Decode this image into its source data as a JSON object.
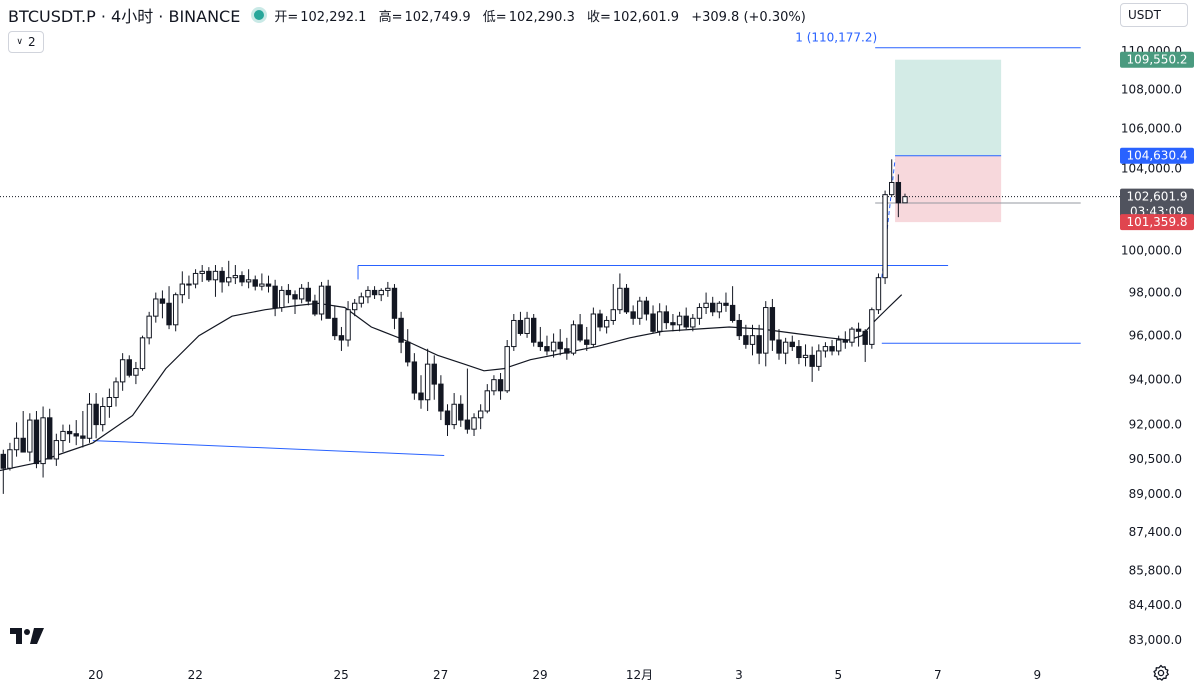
{
  "header": {
    "symbol": "BTCUSDT.P · 4小时 · BINANCE",
    "open_label": "开=",
    "open_value": "102,292.1",
    "high_label": "高=",
    "high_value": "102,749.9",
    "low_label": "低=",
    "low_value": "102,290.3",
    "close_label": "收=",
    "close_value": "102,601.9",
    "change": "+309.8 (+0.30%)"
  },
  "controls": {
    "collapse_count": "2",
    "currency": "USDT"
  },
  "colors": {
    "accent": "#2962ff",
    "target_label": "#4a9a7f",
    "stop_label": "#e0454f",
    "price_label": "#50535e",
    "profit_zone": "#d3ebe6",
    "loss_zone": "#f7d8dc"
  },
  "chart_data": {
    "type": "candlestick",
    "y_scale": "log",
    "ylim": [
      82200,
      110800
    ],
    "y_ticks": [
      {
        "value": 110000,
        "label": "110,000.0"
      },
      {
        "value": 108000,
        "label": "108,000.0"
      },
      {
        "value": 106000,
        "label": "106,000.0"
      },
      {
        "value": 104000,
        "label": "104,000.0"
      },
      {
        "value": 100000,
        "label": "100,000.0"
      },
      {
        "value": 98000,
        "label": "98,000.0"
      },
      {
        "value": 96000,
        "label": "96,000.0"
      },
      {
        "value": 94000,
        "label": "94,000.0"
      },
      {
        "value": 92000,
        "label": "92,000.0"
      },
      {
        "value": 90500,
        "label": "90,500.0"
      },
      {
        "value": 89000,
        "label": "89,000.0"
      },
      {
        "value": 87400,
        "label": "87,400.0"
      },
      {
        "value": 85800,
        "label": "85,800.0"
      },
      {
        "value": 84400,
        "label": "84,400.0"
      },
      {
        "value": 83000,
        "label": "83,000.0"
      }
    ],
    "x_ticks": [
      {
        "bar": 14,
        "label": "20"
      },
      {
        "bar": 29,
        "label": "22"
      },
      {
        "bar": 51,
        "label": "25"
      },
      {
        "bar": 66,
        "label": "27"
      },
      {
        "bar": 81,
        "label": "29"
      },
      {
        "bar": 96,
        "label": "12月"
      },
      {
        "bar": 111,
        "label": "3"
      },
      {
        "bar": 126,
        "label": "5"
      },
      {
        "bar": 141,
        "label": "7"
      },
      {
        "bar": 156,
        "label": "9"
      }
    ],
    "x_range_bars": [
      0,
      167.7
    ],
    "candles": [
      [
        90700,
        90900,
        89000,
        90100
      ],
      [
        90100,
        91200,
        90000,
        90900
      ],
      [
        90900,
        92100,
        90600,
        91400
      ],
      [
        91400,
        92600,
        90800,
        90800
      ],
      [
        90800,
        92500,
        90400,
        92200
      ],
      [
        92200,
        92600,
        90100,
        90300
      ],
      [
        90300,
        92800,
        89700,
        92300
      ],
      [
        92300,
        92700,
        90500,
        90500
      ],
      [
        90500,
        91600,
        90200,
        91300
      ],
      [
        91300,
        92000,
        90800,
        91700
      ],
      [
        91700,
        92000,
        91200,
        91600
      ],
      [
        91600,
        92200,
        91100,
        91500
      ],
      [
        91500,
        92600,
        91000,
        91400
      ],
      [
        91400,
        93400,
        91200,
        92900
      ],
      [
        92900,
        93400,
        91400,
        92000
      ],
      [
        92000,
        93200,
        91700,
        92800
      ],
      [
        92800,
        93600,
        92300,
        93200
      ],
      [
        93200,
        94100,
        92800,
        93900
      ],
      [
        93900,
        95200,
        93500,
        94900
      ],
      [
        94900,
        95100,
        94100,
        94200
      ],
      [
        94200,
        94800,
        93800,
        94500
      ],
      [
        94500,
        96000,
        94400,
        95900
      ],
      [
        95900,
        97100,
        95600,
        96900
      ],
      [
        96900,
        98000,
        96600,
        97700
      ],
      [
        97700,
        98100,
        96800,
        97500
      ],
      [
        97500,
        98300,
        96300,
        96500
      ],
      [
        96500,
        98000,
        96200,
        97900
      ],
      [
        97900,
        99000,
        97500,
        98400
      ],
      [
        98400,
        98800,
        97700,
        98400
      ],
      [
        98400,
        99100,
        98200,
        98900
      ],
      [
        98900,
        99300,
        98500,
        99000
      ],
      [
        99000,
        99200,
        98500,
        98600
      ],
      [
        98600,
        99300,
        97800,
        99000
      ],
      [
        99000,
        99200,
        98000,
        98500
      ],
      [
        98500,
        99500,
        98300,
        98700
      ],
      [
        98700,
        99300,
        98400,
        98800
      ],
      [
        98800,
        99000,
        98300,
        98500
      ],
      [
        98500,
        99100,
        98200,
        98600
      ],
      [
        98600,
        98800,
        98100,
        98300
      ],
      [
        98300,
        98900,
        98100,
        98400
      ],
      [
        98400,
        98800,
        98000,
        98300
      ],
      [
        98300,
        98600,
        96900,
        97300
      ],
      [
        97300,
        98300,
        97100,
        98100
      ],
      [
        98100,
        98400,
        97500,
        97900
      ],
      [
        97900,
        98100,
        97000,
        97700
      ],
      [
        97700,
        98400,
        97500,
        98200
      ],
      [
        98200,
        98500,
        97400,
        97600
      ],
      [
        97600,
        97900,
        96900,
        97000
      ],
      [
        97000,
        98500,
        96700,
        98300
      ],
      [
        98300,
        98600,
        96800,
        96800
      ],
      [
        96800,
        97400,
        95800,
        96000
      ],
      [
        96000,
        96400,
        95300,
        95800
      ],
      [
        95800,
        97600,
        95500,
        97200
      ],
      [
        97200,
        97700,
        96900,
        97500
      ],
      [
        97500,
        98000,
        97300,
        97800
      ],
      [
        97800,
        98300,
        97500,
        98100
      ],
      [
        98100,
        98300,
        97700,
        97900
      ],
      [
        97900,
        98200,
        97600,
        98100
      ],
      [
        98100,
        98500,
        97800,
        98200
      ],
      [
        98200,
        98400,
        96300,
        96800
      ],
      [
        96800,
        97100,
        95200,
        95700
      ],
      [
        95700,
        96300,
        94600,
        94800
      ],
      [
        94800,
        95200,
        93100,
        93400
      ],
      [
        93400,
        94200,
        92700,
        93100
      ],
      [
        93100,
        95400,
        92600,
        94700
      ],
      [
        94700,
        95100,
        93100,
        93800
      ],
      [
        93800,
        94200,
        92200,
        92600
      ],
      [
        92600,
        92900,
        91500,
        92000
      ],
      [
        92000,
        93400,
        91800,
        92900
      ],
      [
        92900,
        93300,
        91900,
        92200
      ],
      [
        92200,
        94500,
        91600,
        91800
      ],
      [
        91800,
        92500,
        91500,
        92300
      ],
      [
        92300,
        92900,
        91800,
        92600
      ],
      [
        92600,
        93800,
        92500,
        93500
      ],
      [
        93500,
        94200,
        93300,
        94000
      ],
      [
        94000,
        94300,
        93100,
        93500
      ],
      [
        93500,
        95800,
        93400,
        95500
      ],
      [
        95500,
        97000,
        95300,
        96700
      ],
      [
        96700,
        97100,
        96000,
        96100
      ],
      [
        96100,
        97100,
        95900,
        96800
      ],
      [
        96800,
        97000,
        95500,
        95700
      ],
      [
        95700,
        96400,
        95300,
        95500
      ],
      [
        95500,
        96000,
        95100,
        95300
      ],
      [
        95300,
        96100,
        95000,
        95700
      ],
      [
        95700,
        96300,
        95100,
        95400
      ],
      [
        95400,
        95900,
        94900,
        95200
      ],
      [
        95200,
        96700,
        95100,
        96500
      ],
      [
        96500,
        97000,
        95700,
        95800
      ],
      [
        95800,
        96400,
        95300,
        95600
      ],
      [
        95600,
        97300,
        95500,
        97000
      ],
      [
        97000,
        97200,
        96200,
        96400
      ],
      [
        96400,
        96900,
        96100,
        96700
      ],
      [
        96700,
        98400,
        96500,
        97200
      ],
      [
        97200,
        98900,
        97000,
        98200
      ],
      [
        98200,
        98400,
        97000,
        97100
      ],
      [
        97100,
        97400,
        96500,
        96800
      ],
      [
        96800,
        97800,
        96500,
        97600
      ],
      [
        97600,
        97800,
        96700,
        97000
      ],
      [
        97000,
        97400,
        96100,
        96200
      ],
      [
        96200,
        97500,
        96000,
        97100
      ],
      [
        97100,
        97400,
        96300,
        96600
      ],
      [
        96600,
        97000,
        96200,
        96500
      ],
      [
        96500,
        97100,
        96200,
        96900
      ],
      [
        96900,
        97300,
        96300,
        96400
      ],
      [
        96400,
        97000,
        96200,
        96800
      ],
      [
        96800,
        97500,
        96500,
        97300
      ],
      [
        97300,
        98000,
        97000,
        97500
      ],
      [
        97500,
        97800,
        96900,
        97100
      ],
      [
        97100,
        97600,
        96800,
        97500
      ],
      [
        97500,
        98000,
        97100,
        97400
      ],
      [
        97400,
        98300,
        96600,
        96700
      ],
      [
        96700,
        97000,
        95800,
        96000
      ],
      [
        96000,
        96500,
        95400,
        95600
      ],
      [
        95600,
        96500,
        95100,
        96000
      ],
      [
        96000,
        96500,
        94700,
        95200
      ],
      [
        95200,
        97600,
        94600,
        97300
      ],
      [
        97300,
        97700,
        95300,
        95800
      ],
      [
        95800,
        96300,
        94900,
        95200
      ],
      [
        95200,
        95900,
        94700,
        95700
      ],
      [
        95700,
        96000,
        95300,
        95500
      ],
      [
        95500,
        95800,
        94700,
        95000
      ],
      [
        95000,
        95600,
        94600,
        95100
      ],
      [
        95100,
        95500,
        93900,
        94600
      ],
      [
        94600,
        95600,
        94400,
        95300
      ],
      [
        95300,
        95700,
        95000,
        95500
      ],
      [
        95500,
        95800,
        95100,
        95300
      ],
      [
        95300,
        96000,
        95100,
        95800
      ],
      [
        95800,
        96200,
        95400,
        95700
      ],
      [
        95700,
        96400,
        95500,
        96300
      ],
      [
        96300,
        96600,
        95500,
        96200
      ],
      [
        96200,
        96300,
        94800,
        95600
      ],
      [
        95600,
        97300,
        95400,
        97200
      ],
      [
        97200,
        98900,
        97000,
        98700
      ],
      [
        98700,
        102900,
        98400,
        102700
      ],
      [
        102700,
        104450,
        102600,
        103300
      ],
      [
        103300,
        103700,
        101600,
        102300
      ],
      [
        102300,
        102750,
        102290,
        102600
      ]
    ],
    "ma": [
      [
        0,
        90000
      ],
      [
        5,
        90300
      ],
      [
        10,
        90800
      ],
      [
        14,
        91200
      ],
      [
        20,
        92400
      ],
      [
        25,
        94500
      ],
      [
        30,
        96000
      ],
      [
        35,
        96900
      ],
      [
        40,
        97200
      ],
      [
        45,
        97400
      ],
      [
        48,
        97500
      ],
      [
        52,
        97300
      ],
      [
        56,
        96400
      ],
      [
        61,
        95800
      ],
      [
        66,
        95100
      ],
      [
        70,
        94700
      ],
      [
        73,
        94400
      ],
      [
        76,
        94500
      ],
      [
        80,
        94900
      ],
      [
        85,
        95200
      ],
      [
        90,
        95500
      ],
      [
        95,
        95900
      ],
      [
        100,
        96200
      ],
      [
        105,
        96300
      ],
      [
        110,
        96400
      ],
      [
        115,
        96300
      ],
      [
        120,
        96100
      ],
      [
        125,
        95900
      ],
      [
        128,
        95800
      ],
      [
        130,
        96000
      ],
      [
        132,
        96700
      ],
      [
        134,
        97300
      ],
      [
        136,
        97900
      ]
    ],
    "levels": [
      {
        "name": "resistance",
        "from_bar": 54,
        "to_bar": 143,
        "value": 99280
      },
      {
        "name": "support",
        "from_bar": 133,
        "to_bar": 163,
        "value": 95650
      },
      {
        "name": "fib-top",
        "from_bar": 132,
        "to_bar": 163,
        "value": 110180,
        "label": "1 (110,177.2)"
      }
    ],
    "trendline": {
      "from_bar": 14,
      "from_value": 91300,
      "to_bar": 67,
      "to_value": 90650
    },
    "trade": {
      "from_bar": 135,
      "to_bar": 151,
      "entry": 104630.4,
      "target": 109550.2,
      "stop": 101359.8,
      "entry_label": "104,630.4",
      "target_label": "109,550.2",
      "stop_label": "101,359.8"
    },
    "last_price": {
      "value": 102601.9,
      "label": "102,601.9",
      "countdown": "03:43:09"
    },
    "open_price_line": 102292.1
  }
}
